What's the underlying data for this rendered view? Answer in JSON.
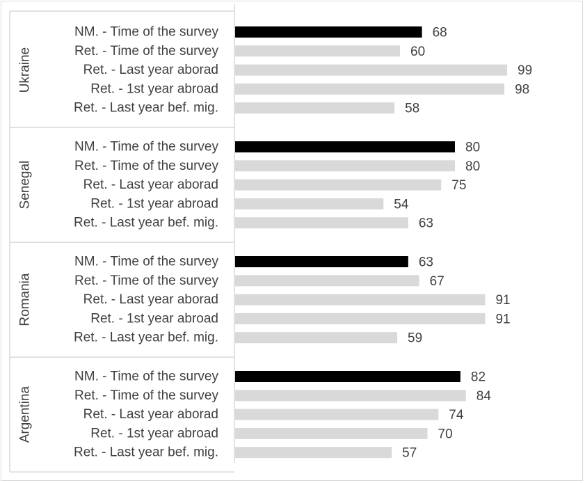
{
  "chart_data": {
    "type": "bar",
    "orientation": "horizontal",
    "xlim": [
      0,
      100
    ],
    "grid": false,
    "legend": "none",
    "colors": {
      "highlight": "#000000",
      "default": "#d9d9d9",
      "axis": "#d9d9d9"
    },
    "groups": [
      {
        "name": "Ukraine",
        "categories": [
          "NM. - Time of the survey",
          "Ret. - Time of the survey",
          "Ret. - Last year aborad",
          "Ret. - 1st year abroad",
          "Ret. - Last year bef. mig."
        ],
        "values": [
          68,
          60,
          99,
          98,
          58
        ]
      },
      {
        "name": "Senegal",
        "categories": [
          "NM. - Time of the survey",
          "Ret. - Time of the survey",
          "Ret. - Last year aborad",
          "Ret. - 1st year abroad",
          "Ret. - Last year bef. mig."
        ],
        "values": [
          80,
          80,
          75,
          54,
          63
        ]
      },
      {
        "name": "Romania",
        "categories": [
          "NM. - Time of the survey",
          "Ret. - Time of the survey",
          "Ret. - Last year aborad",
          "Ret. - 1st year abroad",
          "Ret. - Last year bef. mig."
        ],
        "values": [
          63,
          67,
          91,
          91,
          59
        ]
      },
      {
        "name": "Argentina",
        "categories": [
          "NM. - Time of the survey",
          "Ret. - Time of the survey",
          "Ret. - Last year aborad",
          "Ret. - 1st year abroad",
          "Ret. - Last year bef. mig."
        ],
        "values": [
          82,
          84,
          74,
          70,
          57
        ]
      }
    ]
  }
}
